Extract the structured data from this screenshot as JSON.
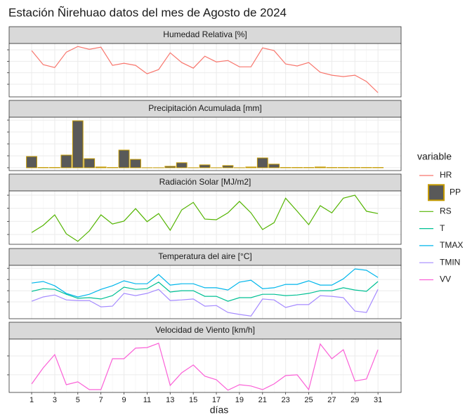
{
  "title": "Estación Ñirehuao datos del mes de Agosto de 2024",
  "legend_title": "variable",
  "x_axis": {
    "label": "días",
    "xlim": [
      -0.95,
      33
    ],
    "xticks": [
      1,
      3,
      5,
      7,
      9,
      11,
      13,
      15,
      17,
      19,
      21,
      23,
      25,
      27,
      29,
      31
    ]
  },
  "chart_data": [
    {
      "type": "line",
      "strip": "Humedad Relativa [%]",
      "x": [
        1,
        2,
        3,
        4,
        5,
        6,
        7,
        8,
        9,
        10,
        11,
        12,
        13,
        14,
        15,
        16,
        17,
        18,
        19,
        20,
        21,
        22,
        23,
        24,
        25,
        26,
        27,
        28,
        29,
        30,
        31
      ],
      "ylim": [
        49,
        95.5
      ],
      "yticks": [
        60,
        70,
        80,
        90
      ],
      "series": [
        {
          "name": "HR",
          "color": "#F8766D",
          "values": [
            89.3,
            77.1,
            74.6,
            88,
            92.9,
            90.5,
            92.3,
            76.5,
            78.3,
            76.5,
            69.1,
            72.8,
            87.4,
            78.9,
            74,
            84.4,
            79.5,
            80.7,
            75.2,
            75.2,
            91.7,
            89.3,
            77.7,
            75.9,
            78.9,
            70.4,
            67.9,
            66.7,
            67.9,
            62.4,
            52.7
          ]
        }
      ]
    },
    {
      "type": "bar",
      "strip": "Precipitación Acumulada [mm]",
      "x": [
        1,
        2,
        3,
        4,
        5,
        6,
        7,
        8,
        9,
        10,
        11,
        12,
        13,
        14,
        15,
        16,
        17,
        18,
        19,
        20,
        21,
        22,
        23,
        24,
        25,
        26,
        27,
        28,
        29,
        30,
        31
      ],
      "ylim": [
        -1.2,
        21.2
      ],
      "yticks": [
        0,
        5,
        10,
        15,
        20
      ],
      "series": [
        {
          "name": "PP",
          "color": "#595959",
          "edge_color": "#C49A00",
          "values": [
            4.7,
            0.1,
            0.1,
            5.3,
            19.7,
            3.8,
            0.3,
            0.1,
            7.4,
            3.5,
            0,
            0,
            0.6,
            2.1,
            0,
            1.2,
            0,
            0.9,
            0,
            0.3,
            4.1,
            1.5,
            0.1,
            0.1,
            0.1,
            0.3,
            0.1,
            0.1,
            0.1,
            0.1,
            0.1
          ]
        }
      ]
    },
    {
      "type": "line",
      "strip": "Radiación Solar [MJ/m2]",
      "x": [
        1,
        2,
        3,
        4,
        5,
        6,
        7,
        8,
        9,
        10,
        11,
        12,
        13,
        14,
        15,
        16,
        17,
        18,
        19,
        20,
        21,
        22,
        23,
        24,
        25,
        26,
        27,
        28,
        29,
        30,
        31
      ],
      "ylim": [
        1.0,
        17.3
      ],
      "yticks": [
        4,
        8,
        12,
        16
      ],
      "series": [
        {
          "name": "RS",
          "color": "#53B400",
          "values": [
            4.6,
            6.8,
            10,
            4.2,
            1.9,
            5.1,
            10,
            7.2,
            8.1,
            11.9,
            7.9,
            10.4,
            5.3,
            11.5,
            13.8,
            8.7,
            8.5,
            10.6,
            14.1,
            10.6,
            5.5,
            7.6,
            15.1,
            11.1,
            7,
            12.8,
            10.6,
            15.1,
            16,
            11.1,
            10.4
          ]
        }
      ]
    },
    {
      "type": "line",
      "strip": "Temperatura del aire [°C]",
      "x": [
        1,
        2,
        3,
        4,
        5,
        6,
        7,
        8,
        9,
        10,
        11,
        12,
        13,
        14,
        15,
        16,
        17,
        18,
        19,
        20,
        21,
        22,
        23,
        24,
        25,
        26,
        27,
        28,
        29,
        30,
        31
      ],
      "ylim": [
        -2.5,
        21.3
      ],
      "yticks": [
        5,
        10,
        15,
        20
      ],
      "series": [
        {
          "name": "T",
          "color": "#00C094",
          "values": [
            9.7,
            10.9,
            10.6,
            8.4,
            6.6,
            6.9,
            6.3,
            7.8,
            11.6,
            10.6,
            10.9,
            13.8,
            9.4,
            10,
            10,
            7.5,
            7.5,
            5.3,
            6.9,
            6.9,
            8.4,
            8.4,
            7.8,
            8.1,
            8.8,
            10,
            10,
            11.3,
            10.3,
            9.7,
            14.1
          ]
        },
        {
          "name": "TMAX",
          "color": "#00B6EB",
          "values": [
            13.4,
            14.1,
            12.2,
            8.8,
            7.2,
            8.4,
            10.6,
            12.2,
            14.4,
            13.1,
            13.1,
            17.2,
            12.5,
            13.1,
            13.1,
            11.3,
            11.3,
            10.3,
            13.8,
            14.7,
            10.9,
            11.3,
            12.8,
            12.8,
            14.4,
            12.5,
            12.5,
            15.3,
            19.7,
            19.1,
            15.9
          ]
        },
        {
          "name": "TMIN",
          "color": "#A58AFF",
          "values": [
            5.3,
            7.2,
            8.1,
            5.9,
            5.6,
            5.6,
            2.8,
            3.1,
            8.8,
            7.8,
            8.8,
            10.6,
            5.6,
            5.9,
            6.3,
            3.1,
            3.4,
            0.3,
            -0.6,
            -1.3,
            6.3,
            5.9,
            2.5,
            3.8,
            3.8,
            7.8,
            7.5,
            6.9,
            0.9,
            0.3,
            10.6
          ]
        }
      ]
    },
    {
      "type": "line",
      "strip": "Velocidad de Viento [km/h]",
      "x": [
        1,
        2,
        3,
        4,
        5,
        6,
        7,
        8,
        9,
        10,
        11,
        12,
        13,
        14,
        15,
        16,
        17,
        18,
        19,
        20,
        21,
        22,
        23,
        24,
        25,
        26,
        27,
        28,
        29,
        30,
        31
      ],
      "ylim": [
        0.7,
        28.9
      ],
      "yticks": [
        10,
        20
      ],
      "series": [
        {
          "name": "VV",
          "color": "#FB61D7",
          "values": [
            5.2,
            13.7,
            20.7,
            4.8,
            6.3,
            2.2,
            2.2,
            18.5,
            18.5,
            24.1,
            24.4,
            26.7,
            4.4,
            11.1,
            15.2,
            9.3,
            7.4,
            1.9,
            4.8,
            4.1,
            2.2,
            5.2,
            9.6,
            10,
            2.2,
            26.3,
            18.5,
            23.3,
            6.7,
            7.8,
            23.3
          ]
        }
      ]
    }
  ]
}
